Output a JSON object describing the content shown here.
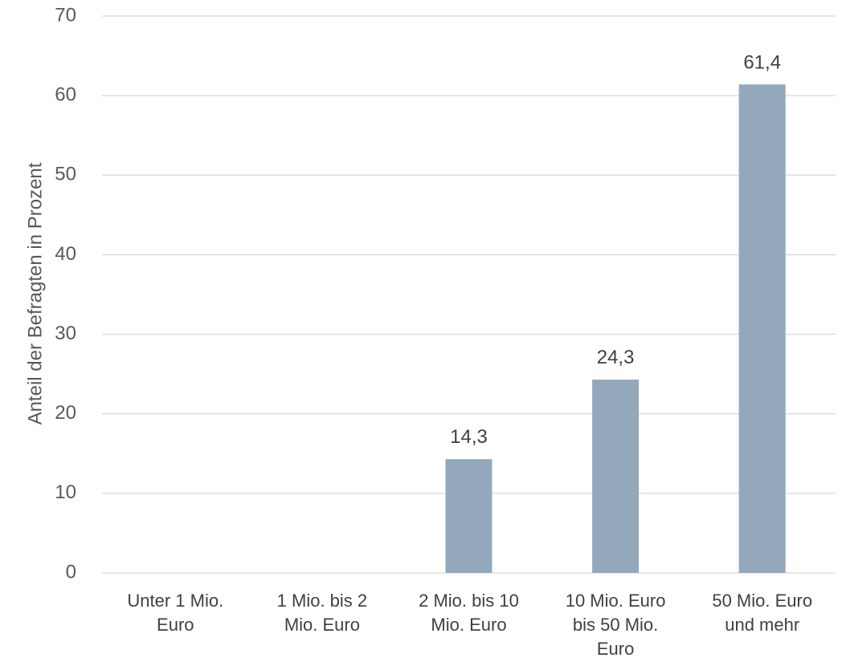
{
  "chart_data": {
    "type": "bar",
    "title": "",
    "xlabel": "",
    "ylabel": "Anteil der Befragten in Prozent",
    "ylim": [
      0,
      70
    ],
    "yticks": [
      "0",
      "10",
      "20",
      "30",
      "40",
      "50",
      "60",
      "70"
    ],
    "grid": true,
    "categories": [
      [
        "Unter 1 Mio.",
        "Euro"
      ],
      [
        "1 Mio. bis 2",
        "Mio. Euro"
      ],
      [
        "2 Mio. bis 10",
        "Mio. Euro"
      ],
      [
        "10 Mio. Euro",
        "bis 50 Mio.",
        "Euro"
      ],
      [
        "50 Mio. Euro",
        "und mehr"
      ]
    ],
    "values": [
      0,
      0,
      14.3,
      24.3,
      61.4
    ],
    "data_labels": [
      "",
      "",
      "14,3",
      "24,3",
      "61,4"
    ],
    "bar_color": "#94a8bc",
    "grid_color": "#d9d9d9"
  }
}
